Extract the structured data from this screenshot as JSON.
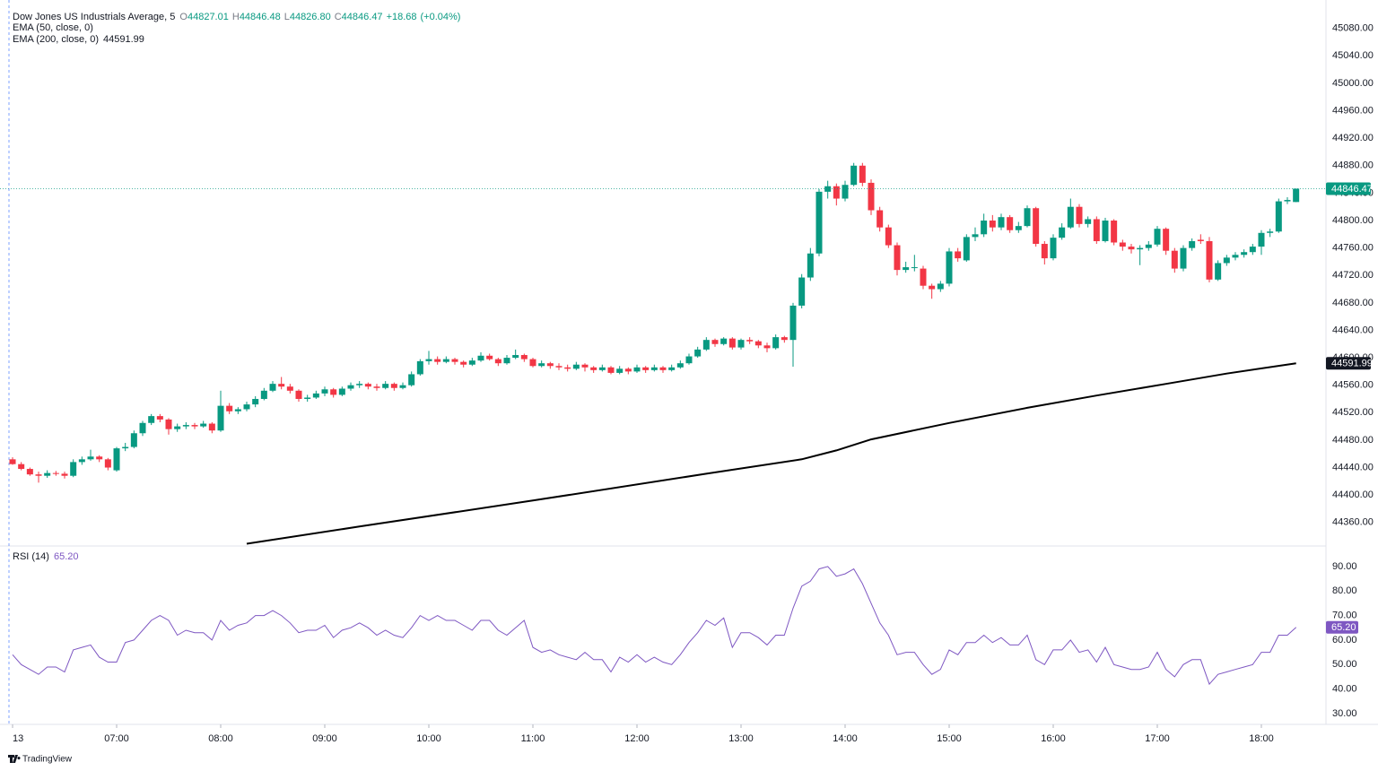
{
  "chart_data": [
    {
      "type": "candlestick",
      "title": "Dow Jones US Industrials Average, 5",
      "ohlc_keys": [
        "O",
        "H",
        "L",
        "C"
      ],
      "last_labels": [
        "44827.01",
        "44846.48",
        "44826.80",
        "44846.47"
      ],
      "change": "+18.68",
      "change_pct": "(+0.04%)",
      "up_color": "#089981",
      "down_color": "#f23645",
      "xlim": [
        -1.45,
        151.45
      ],
      "xticks": [
        {
          "value": 0,
          "label": "13"
        },
        {
          "value": 12,
          "label": "07:00"
        },
        {
          "value": 24,
          "label": "08:00"
        },
        {
          "value": 36,
          "label": "09:00"
        },
        {
          "value": 48,
          "label": "10:00"
        },
        {
          "value": 60,
          "label": "11:00"
        },
        {
          "value": 72,
          "label": "12:00"
        },
        {
          "value": 84,
          "label": "13:00"
        },
        {
          "value": 96,
          "label": "14:00"
        },
        {
          "value": 108,
          "label": "15:00"
        },
        {
          "value": 120,
          "label": "16:00"
        },
        {
          "value": 132,
          "label": "17:00"
        },
        {
          "value": 144,
          "label": "18:00"
        }
      ],
      "ylim": [
        44327,
        45111
      ],
      "yticks": [
        {
          "value": 44360,
          "label": "44360.00"
        },
        {
          "value": 44400,
          "label": "44400.00"
        },
        {
          "value": 44440,
          "label": "44440.00"
        },
        {
          "value": 44480,
          "label": "44480.00"
        },
        {
          "value": 44520,
          "label": "44520.00"
        },
        {
          "value": 44560,
          "label": "44560.00"
        },
        {
          "value": 44600,
          "label": "44600.00"
        },
        {
          "value": 44640,
          "label": "44640.00"
        },
        {
          "value": 44680,
          "label": "44680.00"
        },
        {
          "value": 44720,
          "label": "44720.00"
        },
        {
          "value": 44760,
          "label": "44760.00"
        },
        {
          "value": 44800,
          "label": "44800.00"
        },
        {
          "value": 44840,
          "label": "44840.00"
        },
        {
          "value": 44880,
          "label": "44880.00"
        },
        {
          "value": 44920,
          "label": "44920.00"
        },
        {
          "value": 44960,
          "label": "44960.00"
        },
        {
          "value": 45000,
          "label": "45000.00"
        },
        {
          "value": 45040,
          "label": "45040.00"
        },
        {
          "value": 45080,
          "label": "45080.00"
        }
      ],
      "grid": true,
      "candles": [
        [
          44452,
          44455,
          44444,
          44445
        ],
        [
          44445,
          44448,
          44436,
          44438
        ],
        [
          44438,
          44440,
          44428,
          44430
        ],
        [
          44430,
          44434,
          44418,
          44428
        ],
        [
          44428,
          44436,
          44425,
          44432
        ],
        [
          44432,
          44435,
          44428,
          44431
        ],
        [
          44431,
          44434,
          44424,
          44428
        ],
        [
          44428,
          44452,
          44426,
          44448
        ],
        [
          44448,
          44456,
          44444,
          44452
        ],
        [
          44452,
          44466,
          44450,
          44456
        ],
        [
          44456,
          44458,
          44448,
          44452
        ],
        [
          44452,
          44454,
          44436,
          44440
        ],
        [
          44436,
          44470,
          44434,
          44468
        ],
        [
          44468,
          44476,
          44464,
          44470
        ],
        [
          44470,
          44494,
          44468,
          44490
        ],
        [
          44490,
          44508,
          44486,
          44505
        ],
        [
          44505,
          44518,
          44502,
          44515
        ],
        [
          44515,
          44518,
          44506,
          44510
        ],
        [
          44510,
          44512,
          44488,
          44496
        ],
        [
          44496,
          44504,
          44492,
          44500
        ],
        [
          44500,
          44506,
          44496,
          44502
        ],
        [
          44502,
          44505,
          44496,
          44500
        ],
        [
          44500,
          44508,
          44498,
          44504
        ],
        [
          44504,
          44506,
          44490,
          44494
        ],
        [
          44494,
          44552,
          44492,
          44530
        ],
        [
          44530,
          44534,
          44518,
          44522
        ],
        [
          44522,
          44528,
          44518,
          44525
        ],
        [
          44525,
          44536,
          44522,
          44532
        ],
        [
          44532,
          44544,
          44528,
          44540
        ],
        [
          44540,
          44556,
          44538,
          44552
        ],
        [
          44552,
          44566,
          44550,
          44562
        ],
        [
          44562,
          44572,
          44554,
          44558
        ],
        [
          44558,
          44562,
          44548,
          44552
        ],
        [
          44552,
          44554,
          44536,
          44540
        ],
        [
          44540,
          44546,
          44536,
          44542
        ],
        [
          44542,
          44552,
          44540,
          44548
        ],
        [
          44548,
          44558,
          44544,
          44554
        ],
        [
          44554,
          44556,
          44542,
          44546
        ],
        [
          44546,
          44558,
          44544,
          44555
        ],
        [
          44555,
          44564,
          44552,
          44560
        ],
        [
          44560,
          44566,
          44556,
          44562
        ],
        [
          44562,
          44564,
          44554,
          44558
        ],
        [
          44558,
          44562,
          44552,
          44556
        ],
        [
          44556,
          44566,
          44554,
          44562
        ],
        [
          44562,
          44564,
          44552,
          44556
        ],
        [
          44556,
          44564,
          44554,
          44560
        ],
        [
          44560,
          44580,
          44558,
          44576
        ],
        [
          44576,
          44598,
          44574,
          44595
        ],
        [
          44595,
          44610,
          44590,
          44598
        ],
        [
          44598,
          44602,
          44590,
          44594
        ],
        [
          44594,
          44602,
          44592,
          44598
        ],
        [
          44598,
          44600,
          44590,
          44594
        ],
        [
          44594,
          44596,
          44586,
          44590
        ],
        [
          44590,
          44600,
          44588,
          44596
        ],
        [
          44596,
          44608,
          44594,
          44603
        ],
        [
          44603,
          44606,
          44596,
          44598
        ],
        [
          44598,
          44600,
          44588,
          44592
        ],
        [
          44592,
          44604,
          44590,
          44600
        ],
        [
          44600,
          44612,
          44598,
          44604
        ],
        [
          44604,
          44606,
          44594,
          44598
        ],
        [
          44598,
          44600,
          44586,
          44588
        ],
        [
          44588,
          44596,
          44586,
          44592
        ],
        [
          44592,
          44594,
          44584,
          44588
        ],
        [
          44588,
          44592,
          44582,
          44586
        ],
        [
          44586,
          44590,
          44580,
          44584
        ],
        [
          44584,
          44594,
          44582,
          44590
        ],
        [
          44590,
          44592,
          44580,
          44586
        ],
        [
          44586,
          44588,
          44578,
          44582
        ],
        [
          44582,
          44590,
          44580,
          44586
        ],
        [
          44586,
          44588,
          44576,
          44578
        ],
        [
          44578,
          44588,
          44576,
          44584
        ],
        [
          44584,
          44586,
          44576,
          44580
        ],
        [
          44580,
          44590,
          44578,
          44586
        ],
        [
          44586,
          44588,
          44578,
          44582
        ],
        [
          44582,
          44590,
          44580,
          44586
        ],
        [
          44586,
          44588,
          44578,
          44582
        ],
        [
          44582,
          44590,
          44580,
          44586
        ],
        [
          44586,
          44596,
          44584,
          44592
        ],
        [
          44592,
          44606,
          44590,
          44602
        ],
        [
          44602,
          44616,
          44600,
          44612
        ],
        [
          44612,
          44630,
          44610,
          44626
        ],
        [
          44626,
          44628,
          44616,
          44620
        ],
        [
          44620,
          44630,
          44618,
          44628
        ],
        [
          44628,
          44630,
          44612,
          44615
        ],
        [
          44615,
          44628,
          44612,
          44626
        ],
        [
          44626,
          44630,
          44620,
          44624
        ],
        [
          44624,
          44626,
          44614,
          44618
        ],
        [
          44618,
          44622,
          44608,
          44614
        ],
        [
          44614,
          44634,
          44612,
          44630
        ],
        [
          44630,
          44632,
          44622,
          44626
        ],
        [
          44626,
          44680,
          44587,
          44676
        ],
        [
          44676,
          44722,
          44672,
          44717
        ],
        [
          44717,
          44760,
          44712,
          44752
        ],
        [
          44752,
          44846,
          44748,
          44842
        ],
        [
          44842,
          44858,
          44832,
          44850
        ],
        [
          44850,
          44854,
          44822,
          44832
        ],
        [
          44832,
          44858,
          44828,
          44852
        ],
        [
          44852,
          44884,
          44850,
          44880
        ],
        [
          44880,
          44884,
          44850,
          44855
        ],
        [
          44855,
          44860,
          44808,
          44815
        ],
        [
          44815,
          44820,
          44784,
          44790
        ],
        [
          44790,
          44794,
          44760,
          44764
        ],
        [
          44764,
          44768,
          44720,
          44728
        ],
        [
          44728,
          44740,
          44724,
          44732
        ],
        [
          44732,
          44750,
          44726,
          44732
        ],
        [
          44730,
          44734,
          44700,
          44705
        ],
        [
          44705,
          44708,
          44686,
          44700
        ],
        [
          44700,
          44712,
          44696,
          44708
        ],
        [
          44708,
          44760,
          44704,
          44755
        ],
        [
          44755,
          44760,
          44740,
          44745
        ],
        [
          44742,
          44780,
          44740,
          44776
        ],
        [
          44776,
          44790,
          44770,
          44780
        ],
        [
          44780,
          44810,
          44776,
          44800
        ],
        [
          44800,
          44808,
          44784,
          44790
        ],
        [
          44790,
          44810,
          44786,
          44805
        ],
        [
          44805,
          44808,
          44782,
          44786
        ],
        [
          44786,
          44798,
          44782,
          44792
        ],
        [
          44792,
          44822,
          44790,
          44818
        ],
        [
          44818,
          44820,
          44762,
          44766
        ],
        [
          44766,
          44770,
          44736,
          44745
        ],
        [
          44745,
          44780,
          44742,
          44775
        ],
        [
          44775,
          44796,
          44772,
          44790
        ],
        [
          44790,
          44832,
          44788,
          44820
        ],
        [
          44820,
          44824,
          44790,
          44795
        ],
        [
          44795,
          44806,
          44790,
          44802
        ],
        [
          44802,
          44806,
          44766,
          44770
        ],
        [
          44770,
          44804,
          44768,
          44800
        ],
        [
          44800,
          44802,
          44764,
          44768
        ],
        [
          44768,
          44772,
          44756,
          44762
        ],
        [
          44762,
          44766,
          44752,
          44758
        ],
        [
          44758,
          44764,
          44735,
          44760
        ],
        [
          44760,
          44770,
          44756,
          44765
        ],
        [
          44765,
          44792,
          44762,
          44788
        ],
        [
          44788,
          44790,
          44750,
          44756
        ],
        [
          44756,
          44760,
          44724,
          44730
        ],
        [
          44730,
          44764,
          44726,
          44760
        ],
        [
          44760,
          44774,
          44756,
          44770
        ],
        [
          44772,
          44780,
          44766,
          44770
        ],
        [
          44770,
          44776,
          44710,
          44714
        ],
        [
          44714,
          44742,
          44712,
          44738
        ],
        [
          44738,
          44750,
          44734,
          44746
        ],
        [
          44746,
          44754,
          44742,
          44750
        ],
        [
          44750,
          44758,
          44746,
          44754
        ],
        [
          44754,
          44766,
          44750,
          44762
        ],
        [
          44762,
          44786,
          44750,
          44782
        ],
        [
          44782,
          44788,
          44776,
          44784
        ],
        [
          44784,
          44832,
          44782,
          44828
        ],
        [
          44828,
          44834,
          44824,
          44830
        ],
        [
          44827.01,
          44846.48,
          44826.8,
          44846.47
        ]
      ],
      "ema50": {
        "name": "EMA (50, close, 0)"
      },
      "ema200": {
        "name": "EMA (200, close, 0)",
        "color": "#000000",
        "x": [
          27,
          40,
          60,
          80,
          91,
          95,
          99,
          108,
          117,
          125,
          133,
          140,
          148
        ],
        "values": [
          44329,
          44354,
          44392,
          44431,
          44452,
          44465,
          44481,
          44505,
          44527,
          44545,
          44562,
          44577,
          44591.99
        ]
      }
    },
    {
      "type": "line",
      "title": "RSI (14)",
      "value_label": "65.20",
      "color": "#7e57c2",
      "band": [
        30,
        70
      ],
      "midline": 50,
      "ylim": [
        25.6,
        98
      ],
      "yticks": [
        {
          "value": 30,
          "label": "30.00"
        },
        {
          "value": 40,
          "label": "40.00"
        },
        {
          "value": 50,
          "label": "50.00"
        },
        {
          "value": 60,
          "label": "60.00"
        },
        {
          "value": 70,
          "label": "70.00"
        },
        {
          "value": 80,
          "label": "80.00"
        },
        {
          "value": 90,
          "label": "90.00"
        }
      ],
      "values": [
        54,
        50,
        48,
        46,
        49,
        49,
        47,
        56,
        57,
        58,
        53,
        51,
        51,
        59,
        60,
        64,
        68,
        70,
        68,
        62,
        64,
        63,
        63,
        60,
        68,
        64,
        66,
        67,
        70,
        70,
        72,
        70,
        67,
        63,
        64,
        64,
        66,
        61,
        64,
        65,
        67,
        65,
        62,
        64,
        62,
        61,
        65,
        70,
        68,
        70,
        68,
        68,
        66,
        64,
        68,
        68,
        64,
        62,
        65,
        68,
        57,
        55,
        56,
        54,
        53,
        52,
        55,
        52,
        52,
        47,
        53,
        51,
        54,
        51,
        53,
        51,
        50,
        54,
        59,
        63,
        68,
        66,
        69,
        57,
        63,
        63,
        61,
        58,
        62,
        62,
        73,
        82,
        84,
        89,
        90,
        86,
        87,
        89,
        83,
        75,
        67,
        62,
        54,
        55,
        55,
        50,
        46,
        48,
        56,
        54,
        59,
        59,
        62,
        59,
        61,
        58,
        58,
        62,
        52,
        50,
        56,
        56,
        60,
        55,
        56,
        51,
        57,
        50,
        49,
        48,
        48,
        49,
        55,
        48,
        45,
        50,
        52,
        52,
        42,
        46,
        47,
        48,
        49,
        50,
        55,
        55,
        62,
        62,
        65.2
      ]
    }
  ],
  "footer": "TradingView"
}
